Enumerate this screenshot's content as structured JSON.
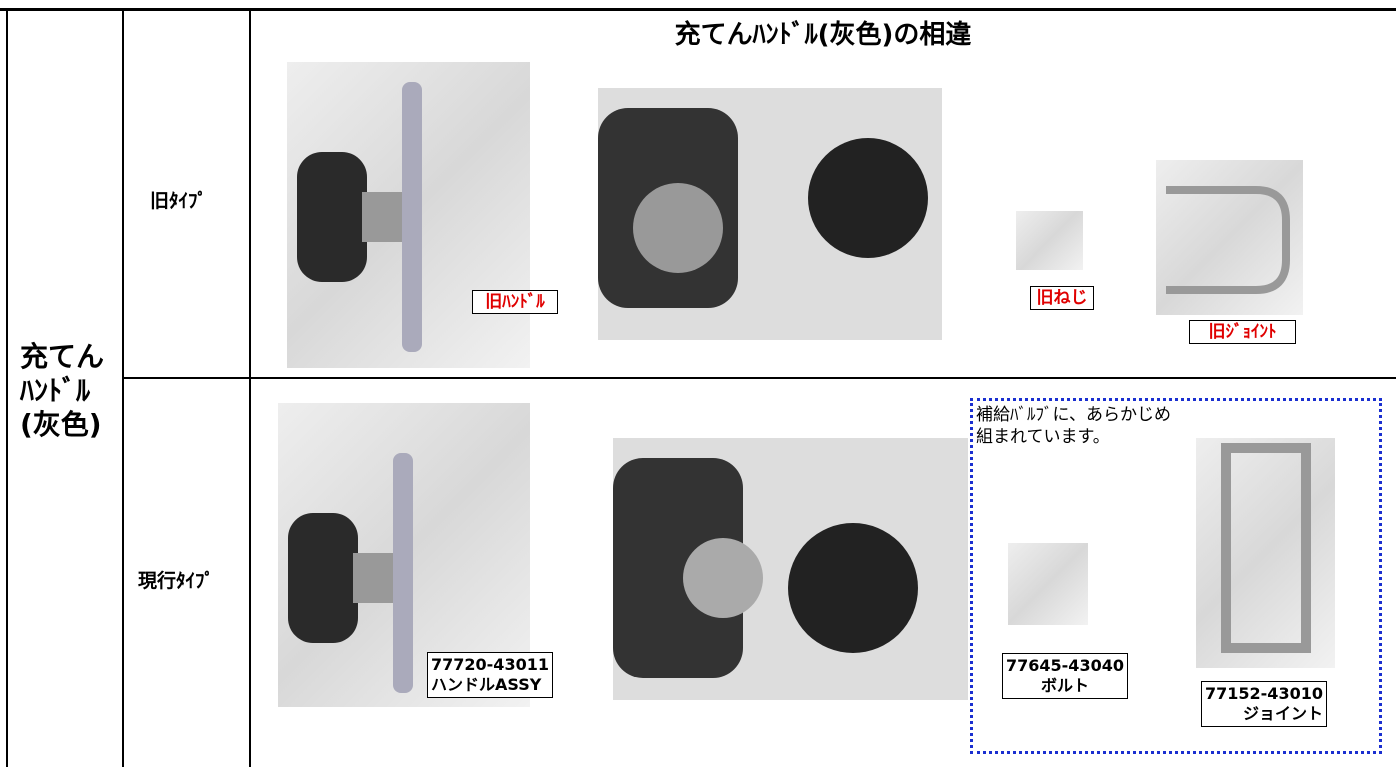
{
  "header": {
    "title": "充てんﾊﾝﾄﾞﾙ(灰色)の相違"
  },
  "table": {
    "row_label": [
      "充てん",
      "ﾊﾝﾄﾞﾙ",
      "(灰色)"
    ],
    "rows": [
      {
        "type": "旧ﾀｲﾌﾟ",
        "labels": [
          "旧ﾊﾝﾄﾞﾙ",
          "旧ねじ",
          "旧ｼﾞｮｲﾝﾄ"
        ]
      },
      {
        "type": "現行ﾀｲﾌﾟ",
        "note": [
          "補給ﾊﾞﾙﾌﾞに、あらかじめ",
          "組まれています。"
        ],
        "parts": [
          [
            "77720-43011",
            "ハンドルASSY"
          ],
          [
            "77645-43040",
            "ボルト"
          ],
          [
            "77152-43010",
            "ジョイント"
          ]
        ]
      }
    ]
  }
}
